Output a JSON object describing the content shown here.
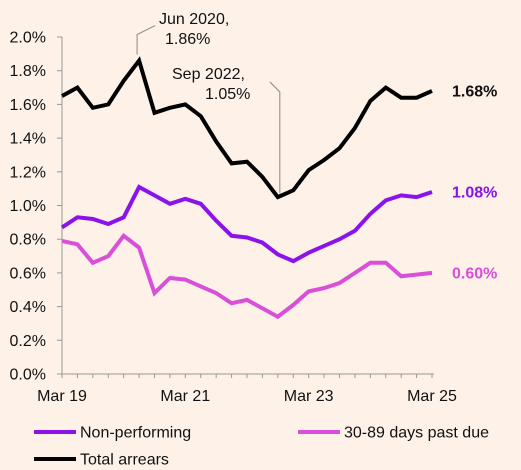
{
  "chart_data": {
    "type": "line",
    "title": "",
    "xlabel": "",
    "ylabel": "",
    "ylim": [
      0,
      2.0
    ],
    "yticks": [
      0,
      0.2,
      0.4,
      0.6,
      0.8,
      1.0,
      1.2,
      1.4,
      1.6,
      1.8,
      2.0
    ],
    "ytick_labels": [
      "0.0%",
      "0.2%",
      "0.4%",
      "0.6%",
      "0.8%",
      "1.0%",
      "1.2%",
      "1.4%",
      "1.6%",
      "1.8%",
      "2.0%"
    ],
    "xticks": [
      {
        "label": "Mar 19",
        "index": 0
      },
      {
        "label": "Mar 21",
        "index": 8
      },
      {
        "label": "Mar 23",
        "index": 16
      },
      {
        "label": "Mar 25",
        "index": 24
      }
    ],
    "x": [
      "Mar 19",
      "Jun 19",
      "Sep 19",
      "Dec 19",
      "Mar 20",
      "Jun 20",
      "Sep 20",
      "Dec 20",
      "Mar 21",
      "Jun 21",
      "Sep 21",
      "Dec 21",
      "Mar 22",
      "Jun 22",
      "Sep 22",
      "Dec 22",
      "Mar 23",
      "Jun 23",
      "Sep 23",
      "Dec 23",
      "Mar 24",
      "Jun 24",
      "Sep 24",
      "Dec 24",
      "Mar 25"
    ],
    "grid": false,
    "series": [
      {
        "name": "Total arrears",
        "color": "#000000",
        "values": [
          1.65,
          1.7,
          1.58,
          1.6,
          1.74,
          1.86,
          1.55,
          1.58,
          1.6,
          1.53,
          1.38,
          1.25,
          1.26,
          1.17,
          1.05,
          1.09,
          1.21,
          1.27,
          1.34,
          1.46,
          1.62,
          1.7,
          1.64,
          1.64,
          1.68
        ],
        "end_label": "1.68%"
      },
      {
        "name": "Non-performing",
        "color": "#8b12ea",
        "values": [
          0.87,
          0.93,
          0.92,
          0.89,
          0.93,
          1.11,
          1.06,
          1.01,
          1.04,
          1.01,
          0.91,
          0.82,
          0.81,
          0.78,
          0.71,
          0.67,
          0.72,
          0.76,
          0.8,
          0.85,
          0.95,
          1.03,
          1.06,
          1.05,
          1.08
        ],
        "end_label": "1.08%"
      },
      {
        "name": "30-89 days past due",
        "color": "#d94fd8",
        "values": [
          0.79,
          0.77,
          0.66,
          0.7,
          0.82,
          0.75,
          0.48,
          0.57,
          0.56,
          0.52,
          0.48,
          0.42,
          0.44,
          0.39,
          0.34,
          0.41,
          0.49,
          0.51,
          0.54,
          0.6,
          0.66,
          0.66,
          0.58,
          0.59,
          0.6
        ],
        "end_label": "0.60%"
      }
    ],
    "annotations": [
      {
        "line1": "Jun 2020,",
        "line2": "1.86%",
        "index": 5,
        "value": 1.86
      },
      {
        "line1": "Sep 2022,",
        "line2": "1.05%",
        "index": 14,
        "value": 1.05
      }
    ],
    "legend": {
      "placement": "bottom",
      "items": [
        "Non-performing",
        "30-89 days past due",
        "Total arrears"
      ]
    }
  }
}
